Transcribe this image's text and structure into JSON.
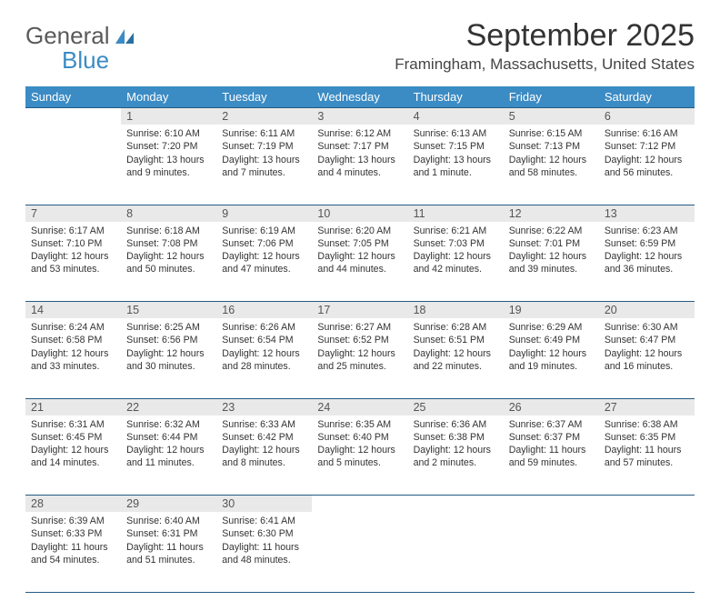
{
  "brand": {
    "line1": "General",
    "line2": "Blue"
  },
  "title": "September 2025",
  "location": "Framingham, Massachusetts, United States",
  "colors": {
    "header_bg": "#3b8bc4",
    "header_text": "#ffffff",
    "daynum_bg": "#e9e9e9",
    "border": "#255a82",
    "logo_gray": "#5a5a5a",
    "logo_blue": "#3b8bc4"
  },
  "dayNames": [
    "Sunday",
    "Monday",
    "Tuesday",
    "Wednesday",
    "Thursday",
    "Friday",
    "Saturday"
  ],
  "weeks": [
    [
      null,
      {
        "n": "1",
        "sunrise": "6:10 AM",
        "sunset": "7:20 PM",
        "daylight": "13 hours and 9 minutes."
      },
      {
        "n": "2",
        "sunrise": "6:11 AM",
        "sunset": "7:19 PM",
        "daylight": "13 hours and 7 minutes."
      },
      {
        "n": "3",
        "sunrise": "6:12 AM",
        "sunset": "7:17 PM",
        "daylight": "13 hours and 4 minutes."
      },
      {
        "n": "4",
        "sunrise": "6:13 AM",
        "sunset": "7:15 PM",
        "daylight": "13 hours and 1 minute."
      },
      {
        "n": "5",
        "sunrise": "6:15 AM",
        "sunset": "7:13 PM",
        "daylight": "12 hours and 58 minutes."
      },
      {
        "n": "6",
        "sunrise": "6:16 AM",
        "sunset": "7:12 PM",
        "daylight": "12 hours and 56 minutes."
      }
    ],
    [
      {
        "n": "7",
        "sunrise": "6:17 AM",
        "sunset": "7:10 PM",
        "daylight": "12 hours and 53 minutes."
      },
      {
        "n": "8",
        "sunrise": "6:18 AM",
        "sunset": "7:08 PM",
        "daylight": "12 hours and 50 minutes."
      },
      {
        "n": "9",
        "sunrise": "6:19 AM",
        "sunset": "7:06 PM",
        "daylight": "12 hours and 47 minutes."
      },
      {
        "n": "10",
        "sunrise": "6:20 AM",
        "sunset": "7:05 PM",
        "daylight": "12 hours and 44 minutes."
      },
      {
        "n": "11",
        "sunrise": "6:21 AM",
        "sunset": "7:03 PM",
        "daylight": "12 hours and 42 minutes."
      },
      {
        "n": "12",
        "sunrise": "6:22 AM",
        "sunset": "7:01 PM",
        "daylight": "12 hours and 39 minutes."
      },
      {
        "n": "13",
        "sunrise": "6:23 AM",
        "sunset": "6:59 PM",
        "daylight": "12 hours and 36 minutes."
      }
    ],
    [
      {
        "n": "14",
        "sunrise": "6:24 AM",
        "sunset": "6:58 PM",
        "daylight": "12 hours and 33 minutes."
      },
      {
        "n": "15",
        "sunrise": "6:25 AM",
        "sunset": "6:56 PM",
        "daylight": "12 hours and 30 minutes."
      },
      {
        "n": "16",
        "sunrise": "6:26 AM",
        "sunset": "6:54 PM",
        "daylight": "12 hours and 28 minutes."
      },
      {
        "n": "17",
        "sunrise": "6:27 AM",
        "sunset": "6:52 PM",
        "daylight": "12 hours and 25 minutes."
      },
      {
        "n": "18",
        "sunrise": "6:28 AM",
        "sunset": "6:51 PM",
        "daylight": "12 hours and 22 minutes."
      },
      {
        "n": "19",
        "sunrise": "6:29 AM",
        "sunset": "6:49 PM",
        "daylight": "12 hours and 19 minutes."
      },
      {
        "n": "20",
        "sunrise": "6:30 AM",
        "sunset": "6:47 PM",
        "daylight": "12 hours and 16 minutes."
      }
    ],
    [
      {
        "n": "21",
        "sunrise": "6:31 AM",
        "sunset": "6:45 PM",
        "daylight": "12 hours and 14 minutes."
      },
      {
        "n": "22",
        "sunrise": "6:32 AM",
        "sunset": "6:44 PM",
        "daylight": "12 hours and 11 minutes."
      },
      {
        "n": "23",
        "sunrise": "6:33 AM",
        "sunset": "6:42 PM",
        "daylight": "12 hours and 8 minutes."
      },
      {
        "n": "24",
        "sunrise": "6:35 AM",
        "sunset": "6:40 PM",
        "daylight": "12 hours and 5 minutes."
      },
      {
        "n": "25",
        "sunrise": "6:36 AM",
        "sunset": "6:38 PM",
        "daylight": "12 hours and 2 minutes."
      },
      {
        "n": "26",
        "sunrise": "6:37 AM",
        "sunset": "6:37 PM",
        "daylight": "11 hours and 59 minutes."
      },
      {
        "n": "27",
        "sunrise": "6:38 AM",
        "sunset": "6:35 PM",
        "daylight": "11 hours and 57 minutes."
      }
    ],
    [
      {
        "n": "28",
        "sunrise": "6:39 AM",
        "sunset": "6:33 PM",
        "daylight": "11 hours and 54 minutes."
      },
      {
        "n": "29",
        "sunrise": "6:40 AM",
        "sunset": "6:31 PM",
        "daylight": "11 hours and 51 minutes."
      },
      {
        "n": "30",
        "sunrise": "6:41 AM",
        "sunset": "6:30 PM",
        "daylight": "11 hours and 48 minutes."
      },
      null,
      null,
      null,
      null
    ]
  ],
  "labels": {
    "sunrise": "Sunrise:",
    "sunset": "Sunset:",
    "daylight": "Daylight:"
  }
}
